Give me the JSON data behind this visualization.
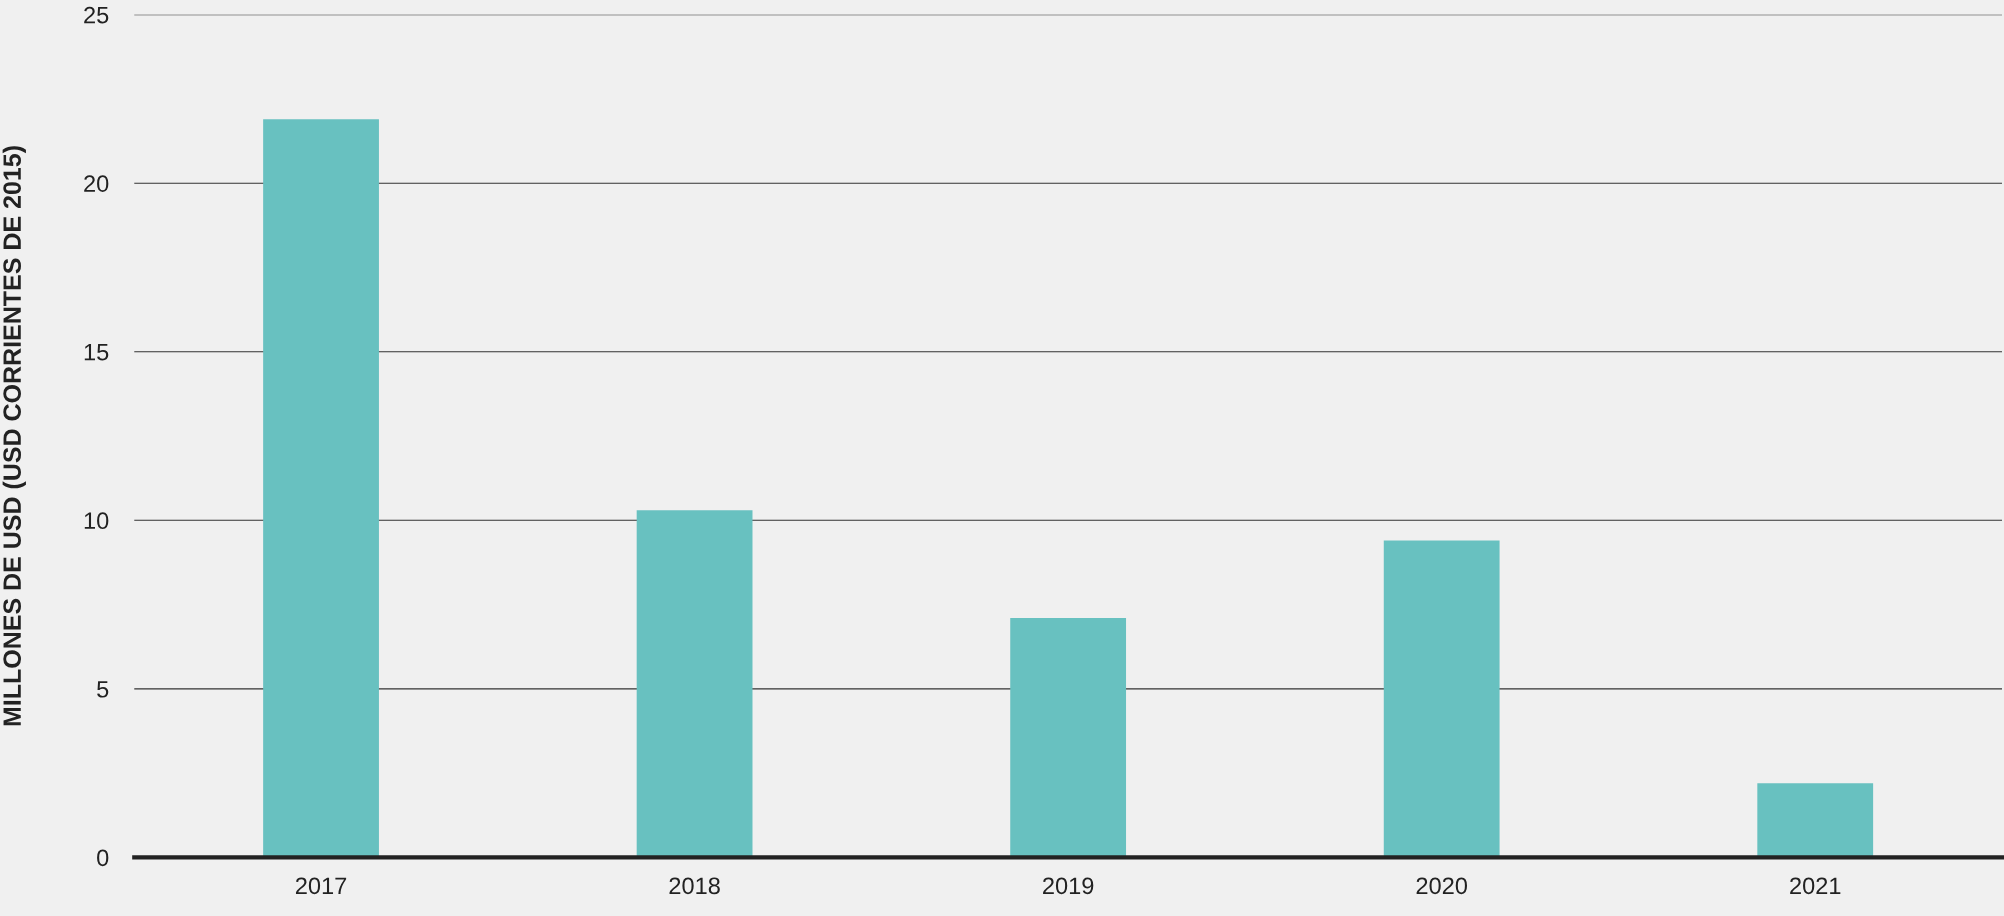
{
  "chart_data": {
    "type": "bar",
    "ylabel": "MILLONES DE USD (USD CORRIENTES DE 2015)",
    "categories": [
      "2017",
      "2018",
      "2019",
      "2020",
      "2021"
    ],
    "values": [
      21.9,
      10.3,
      7.1,
      9.4,
      2.2
    ],
    "color": "#68c1c0",
    "ylim": [
      0,
      25
    ],
    "yticks": [
      0,
      5,
      10,
      15,
      20,
      25
    ],
    "grid": "y"
  }
}
